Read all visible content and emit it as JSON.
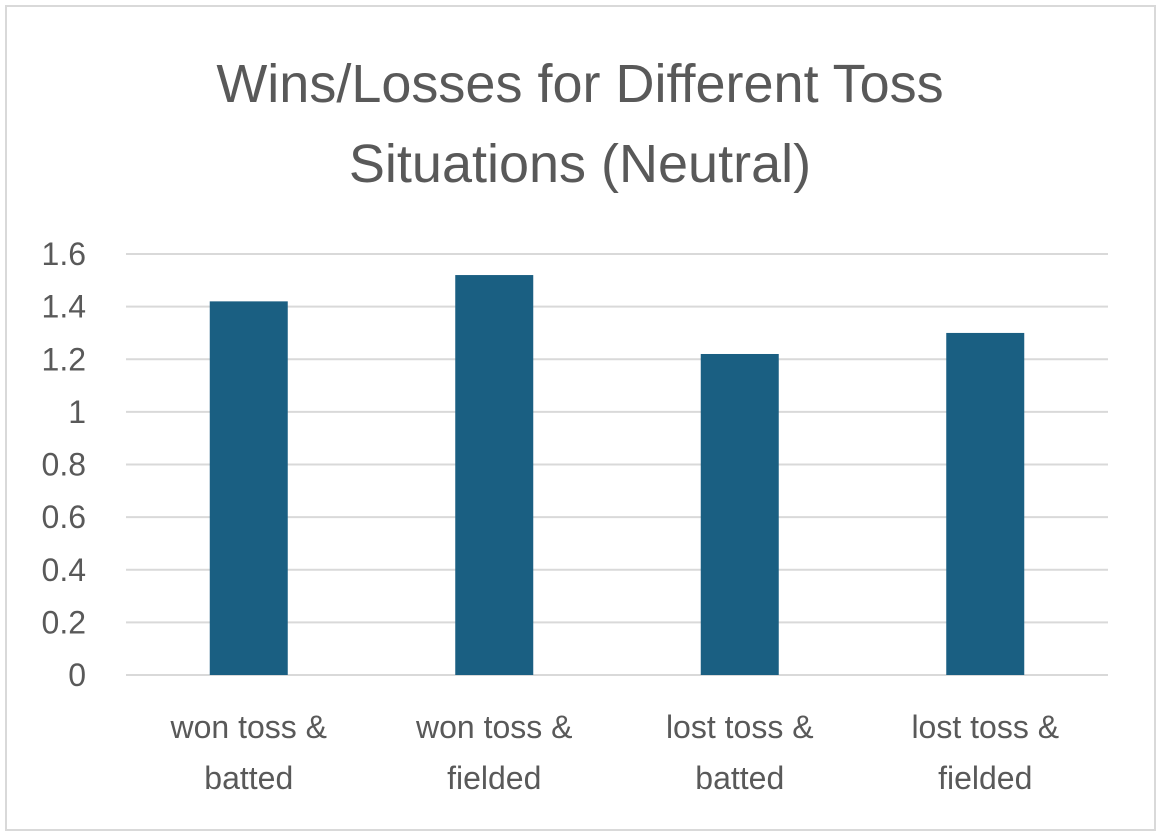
{
  "chart_data": {
    "type": "bar",
    "title_lines": [
      "Wins/Losses for Different Toss",
      "Situations (Neutral)"
    ],
    "categories": [
      [
        "won toss &",
        "batted"
      ],
      [
        "won toss &",
        "fielded"
      ],
      [
        "lost toss &",
        "batted"
      ],
      [
        "lost toss &",
        "fielded"
      ]
    ],
    "values": [
      1.42,
      1.52,
      1.22,
      1.3
    ],
    "yticks": [
      "0",
      "0.2",
      "0.4",
      "0.6",
      "0.8",
      "1",
      "1.2",
      "1.4",
      "1.6"
    ],
    "ylim": [
      0,
      1.6
    ],
    "xlabel": "",
    "ylabel": "",
    "grid": true,
    "legend": "none",
    "colors": {
      "bar": "#1a5f82",
      "grid": "#d9d9d9",
      "axis": "#d9d9d9",
      "text": "#595959"
    }
  }
}
